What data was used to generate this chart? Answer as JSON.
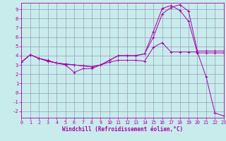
{
  "xlabel": "Windchill (Refroidissement éolien,°C)",
  "background_color": "#c8ecec",
  "grid_color": "#9999bb",
  "line_color": "#aa00aa",
  "xlim": [
    0,
    23
  ],
  "ylim": [
    -2.7,
    9.7
  ],
  "xticks": [
    0,
    1,
    2,
    3,
    4,
    5,
    6,
    7,
    8,
    9,
    10,
    11,
    12,
    13,
    14,
    15,
    16,
    17,
    18,
    19,
    20,
    21,
    22,
    23
  ],
  "yticks": [
    -2,
    -1,
    0,
    1,
    2,
    3,
    4,
    5,
    6,
    7,
    8,
    9
  ],
  "hours": [
    0,
    1,
    2,
    3,
    4,
    5,
    6,
    7,
    8,
    9,
    10,
    11,
    12,
    13,
    14,
    15,
    16,
    17,
    18,
    19,
    20,
    21,
    22,
    23
  ],
  "line1": [
    3.3,
    4.1,
    3.7,
    3.5,
    3.2,
    3.0,
    2.2,
    2.6,
    2.6,
    3.0,
    3.3,
    3.5,
    3.5,
    3.5,
    3.4,
    4.9,
    5.4,
    4.4,
    4.4,
    4.4,
    4.4,
    1.7,
    -2.2,
    -2.5
  ],
  "line2": [
    3.3,
    4.1,
    3.7,
    3.4,
    3.2,
    3.1,
    3.0,
    2.9,
    2.8,
    3.0,
    3.5,
    4.0,
    4.0,
    4.0,
    4.2,
    6.6,
    9.1,
    9.4,
    8.9,
    7.7,
    4.3,
    4.3,
    4.3,
    4.3
  ],
  "line3": [
    3.3,
    4.1,
    3.7,
    3.4,
    3.2,
    3.1,
    3.0,
    2.9,
    2.8,
    3.0,
    3.5,
    4.0,
    4.0,
    4.0,
    4.2,
    6.0,
    8.5,
    9.2,
    9.5,
    8.8,
    4.5,
    4.5,
    4.5,
    4.5
  ]
}
